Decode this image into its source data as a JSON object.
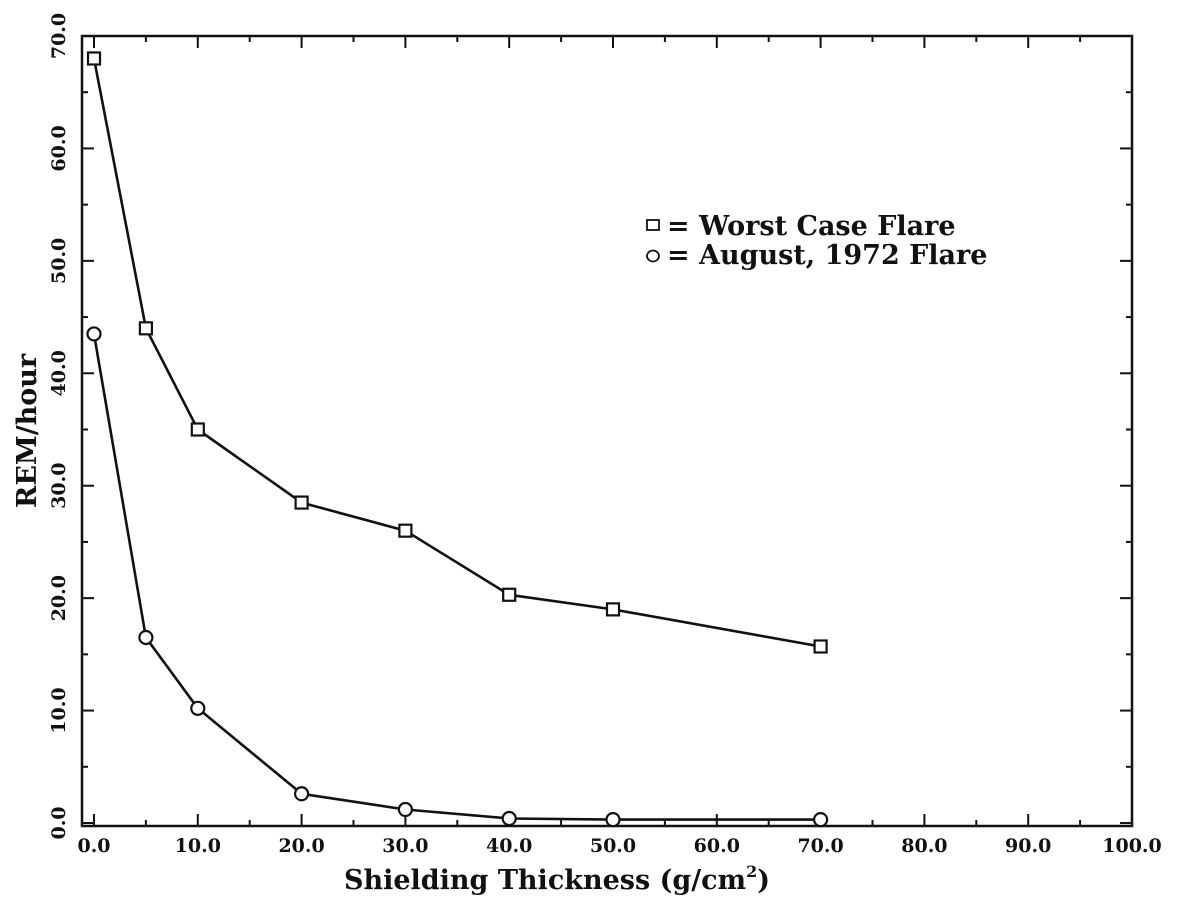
{
  "chart_data": {
    "type": "line",
    "title": "",
    "xlabel": "Shielding Thickness (g/cm",
    "xlabel_superscript": "2",
    "xlabel_suffix": ")",
    "ylabel": "REM/hour",
    "xlim": [
      0,
      100
    ],
    "ylim": [
      0,
      70
    ],
    "x_ticks": [
      0,
      10,
      20,
      30,
      40,
      50,
      60,
      70,
      80,
      90,
      100
    ],
    "x_tick_labels": [
      "0.0",
      "10.0",
      "20.0",
      "30.0",
      "40.0",
      "50.0",
      "60.0",
      "70.0",
      "80.0",
      "90.0",
      "100.0"
    ],
    "y_ticks": [
      0,
      10,
      20,
      30,
      40,
      50,
      60,
      70
    ],
    "y_tick_labels": [
      "0.0",
      "10.0",
      "20.0",
      "30.0",
      "40.0",
      "50.0",
      "60.0",
      "70.0"
    ],
    "grid": false,
    "legend_position": "top-right",
    "series": [
      {
        "name": "Worst Case Flare",
        "legend_label": "= Worst Case Flare",
        "marker": "square",
        "x": [
          0,
          5,
          10,
          20,
          30,
          40,
          50,
          70
        ],
        "y": [
          68.0,
          44.0,
          35.0,
          28.5,
          26.0,
          20.3,
          19.0,
          15.7
        ]
      },
      {
        "name": "August, 1972 Flare",
        "legend_label": "= August, 1972 Flare",
        "marker": "circle",
        "x": [
          0,
          5,
          10,
          20,
          30,
          40,
          50,
          70
        ],
        "y": [
          43.5,
          16.5,
          10.2,
          2.6,
          1.2,
          0.4,
          0.3,
          0.3
        ]
      }
    ]
  }
}
